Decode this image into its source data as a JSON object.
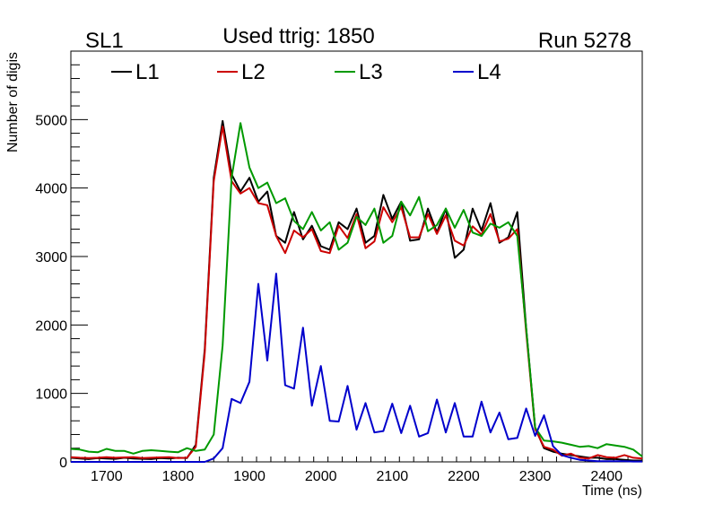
{
  "header": {
    "left": "SL1",
    "center": "Used ttrig: 1850",
    "right": "Run 5278"
  },
  "chart_data": {
    "type": "line",
    "title": "Used ttrig: 1850",
    "xlabel": "Time (ns)",
    "ylabel": "Number of digis",
    "xlim": [
      1650,
      2450
    ],
    "ylim": [
      0,
      6000
    ],
    "xticks": [
      1700,
      1800,
      1900,
      2000,
      2100,
      2200,
      2300,
      2400
    ],
    "yticks": [
      0,
      1000,
      2000,
      3000,
      4000,
      5000
    ],
    "grid": false,
    "legend_position": "top",
    "x": [
      1650,
      1662.5,
      1675,
      1687.5,
      1700,
      1712.5,
      1725,
      1737.5,
      1750,
      1762.5,
      1775,
      1787.5,
      1800,
      1812.5,
      1825,
      1837.5,
      1850,
      1862.5,
      1875,
      1887.5,
      1900,
      1912.5,
      1925,
      1937.5,
      1950,
      1962.5,
      1975,
      1987.5,
      2000,
      2012.5,
      2025,
      2037.5,
      2050,
      2062.5,
      2075,
      2087.5,
      2100,
      2112.5,
      2125,
      2137.5,
      2150,
      2162.5,
      2175,
      2187.5,
      2200,
      2212.5,
      2225,
      2237.5,
      2250,
      2262.5,
      2275,
      2287.5,
      2300,
      2312.5,
      2325,
      2337.5,
      2350,
      2362.5,
      2375,
      2387.5,
      2400,
      2412.5,
      2425,
      2437.5,
      2450
    ],
    "series": [
      {
        "name": "L1",
        "color": "#000000",
        "values": [
          60,
          50,
          40,
          55,
          50,
          45,
          60,
          50,
          45,
          40,
          55,
          50,
          60,
          55,
          250,
          1650,
          4150,
          4980,
          4200,
          3950,
          4150,
          3800,
          3950,
          3300,
          3200,
          3650,
          3250,
          3450,
          3150,
          3100,
          3500,
          3400,
          3700,
          3200,
          3300,
          3900,
          3550,
          3800,
          3230,
          3250,
          3700,
          3350,
          3700,
          2980,
          3100,
          3700,
          3380,
          3780,
          3200,
          3280,
          3650,
          1950,
          500,
          200,
          150,
          120,
          100,
          80,
          60,
          60,
          40,
          40,
          30,
          20,
          20
        ]
      },
      {
        "name": "L2",
        "color": "#cc0000",
        "values": [
          70,
          60,
          55,
          60,
          70,
          60,
          65,
          70,
          55,
          60,
          65,
          70,
          55,
          60,
          220,
          1600,
          4100,
          4900,
          4100,
          3920,
          4000,
          3780,
          3750,
          3300,
          3050,
          3380,
          3280,
          3400,
          3080,
          3050,
          3450,
          3270,
          3620,
          3120,
          3220,
          3720,
          3500,
          3720,
          3280,
          3280,
          3620,
          3330,
          3600,
          3230,
          3160,
          3440,
          3320,
          3620,
          3220,
          3260,
          3400,
          1900,
          480,
          220,
          180,
          90,
          120,
          60,
          50,
          100,
          70,
          60,
          100,
          60,
          50
        ]
      },
      {
        "name": "L3",
        "color": "#009900",
        "values": [
          190,
          180,
          150,
          140,
          190,
          160,
          160,
          120,
          160,
          170,
          160,
          150,
          140,
          200,
          160,
          180,
          400,
          1700,
          4150,
          4950,
          4300,
          4000,
          4080,
          3780,
          3850,
          3520,
          3400,
          3650,
          3380,
          3500,
          3100,
          3200,
          3580,
          3460,
          3700,
          3200,
          3300,
          3800,
          3600,
          3870,
          3370,
          3460,
          3700,
          3420,
          3680,
          3350,
          3300,
          3480,
          3420,
          3500,
          3300,
          1950,
          500,
          310,
          300,
          280,
          250,
          220,
          230,
          200,
          260,
          240,
          220,
          180,
          80
        ]
      },
      {
        "name": "L4",
        "color": "#0000cc",
        "values": [
          0,
          0,
          0,
          0,
          0,
          0,
          0,
          0,
          0,
          0,
          0,
          0,
          0,
          0,
          0,
          0,
          50,
          200,
          920,
          860,
          1170,
          2600,
          1480,
          2750,
          1120,
          1070,
          1960,
          820,
          1400,
          600,
          590,
          1110,
          470,
          860,
          430,
          450,
          850,
          420,
          820,
          370,
          420,
          910,
          430,
          860,
          370,
          370,
          880,
          430,
          720,
          330,
          350,
          780,
          380,
          680,
          230,
          100,
          60,
          30,
          20,
          10,
          10,
          10,
          10,
          5,
          5
        ]
      }
    ]
  }
}
